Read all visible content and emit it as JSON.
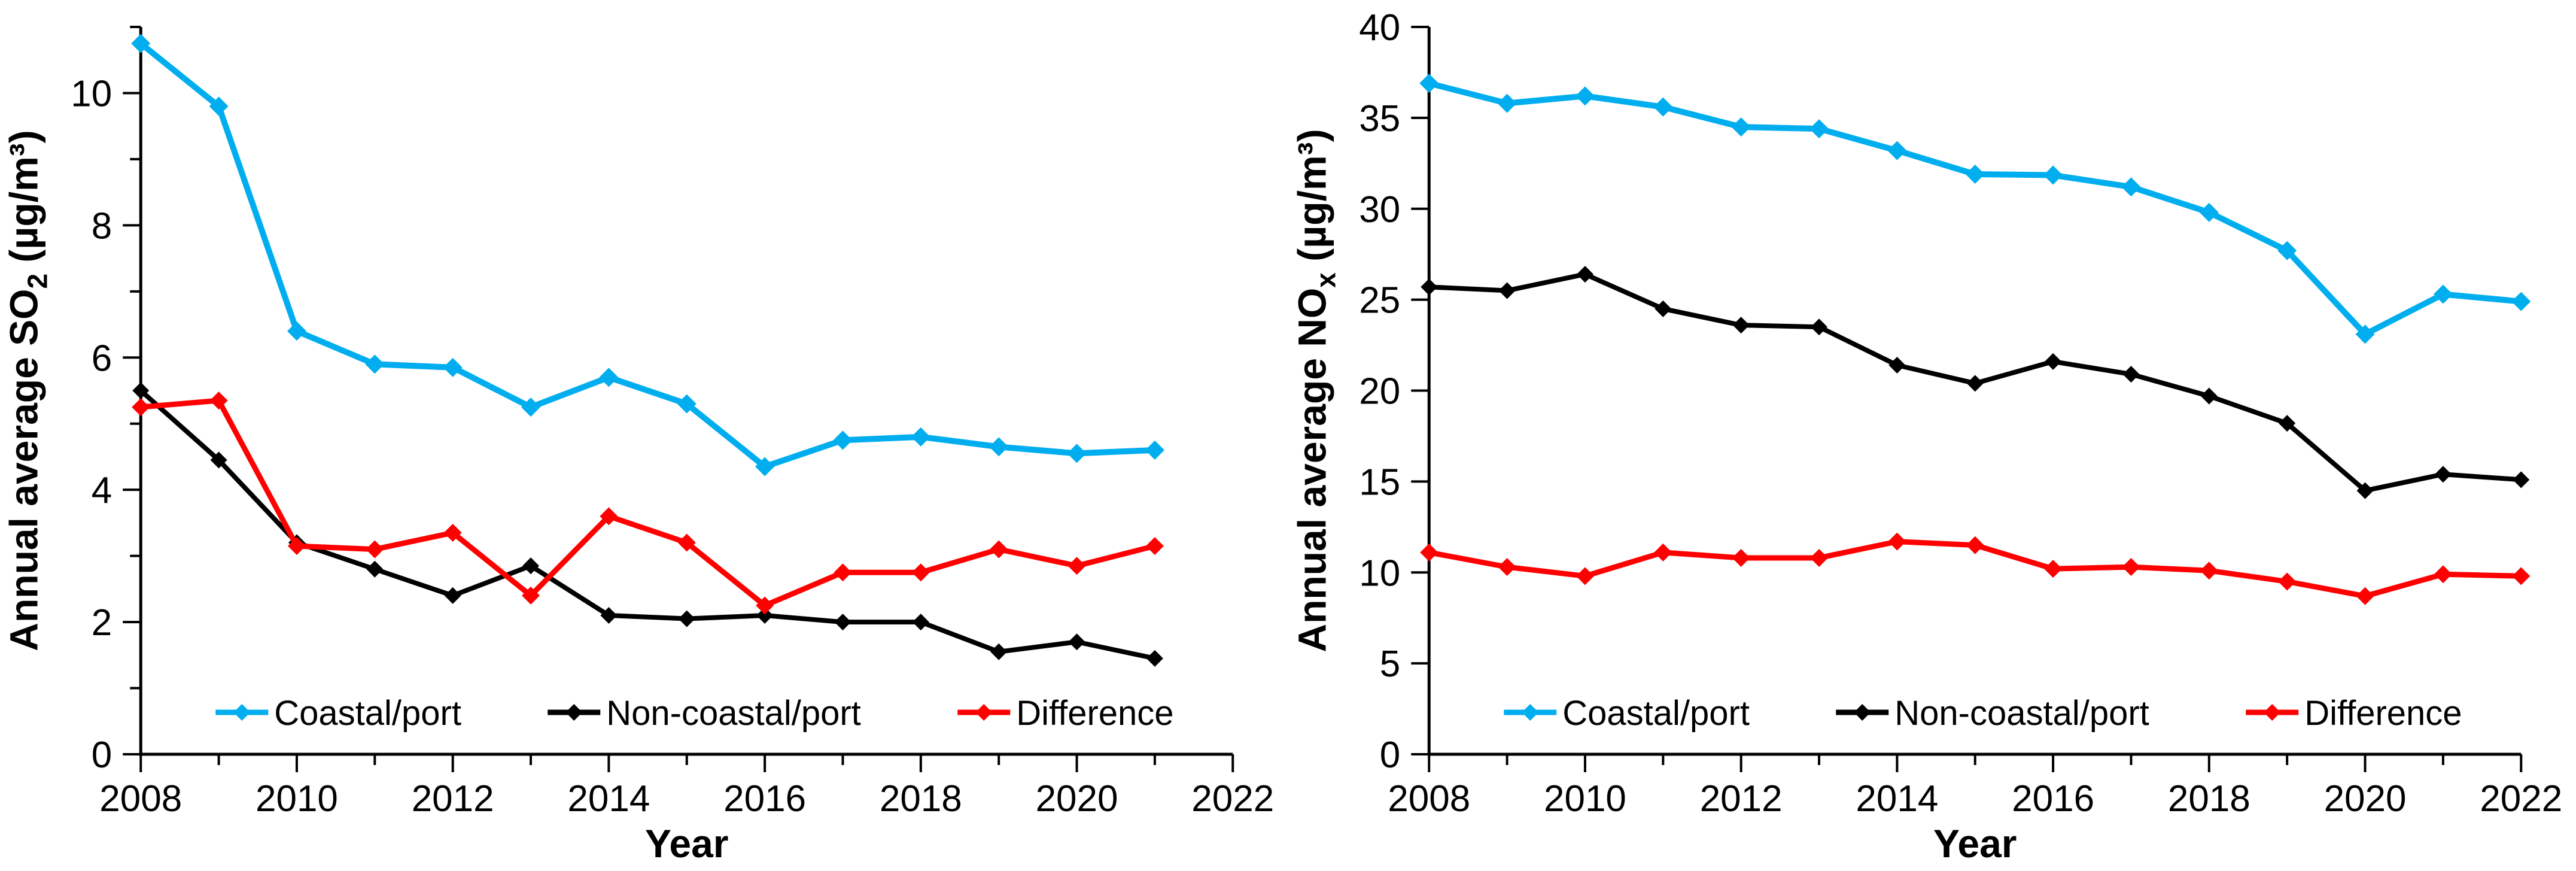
{
  "figure": {
    "background": "#ffffff",
    "axis_color": "#000000",
    "text_color": "#000000"
  },
  "chart_data": [
    {
      "type": "line",
      "id": "so2",
      "title": "",
      "xlabel": "Year",
      "ylabel_plain": "Annual average SO2 (µg/m³)",
      "ylabel_parts": [
        {
          "text": "Annual average SO"
        },
        {
          "text": "2",
          "sub": true
        },
        {
          "text": " (µg/m³)"
        }
      ],
      "x": [
        2008,
        2009,
        2010,
        2011,
        2012,
        2013,
        2014,
        2015,
        2016,
        2017,
        2018,
        2019,
        2020,
        2021
      ],
      "xlim": [
        2008,
        2022
      ],
      "ylim": [
        0,
        11
      ],
      "y_major_ticks": [
        0,
        2,
        4,
        6,
        8,
        10
      ],
      "y_minor_ticks": [
        1,
        3,
        5,
        7,
        9,
        11
      ],
      "x_major_ticks": [
        2008,
        2010,
        2012,
        2014,
        2016,
        2018,
        2020,
        2022
      ],
      "x_minor_ticks": [
        2009,
        2011,
        2013,
        2015,
        2017,
        2019,
        2021
      ],
      "grid": false,
      "legend_position": "bottom-inside",
      "series": [
        {
          "name": "Coastal/port",
          "color": "#00AEEF",
          "stroke_width": 10,
          "values": [
            10.75,
            9.8,
            6.4,
            5.9,
            5.85,
            5.25,
            5.7,
            5.3,
            4.35,
            4.75,
            4.8,
            4.65,
            4.55,
            4.6
          ]
        },
        {
          "name": "Non-coastal/port",
          "color": "#000000",
          "stroke_width": 8,
          "values": [
            5.5,
            4.45,
            3.2,
            2.8,
            2.4,
            2.85,
            2.1,
            2.05,
            2.1,
            2.0,
            2.0,
            1.55,
            1.7,
            1.45
          ]
        },
        {
          "name": "Difference",
          "color": "#FF0000",
          "stroke_width": 9,
          "values": [
            5.25,
            5.35,
            3.15,
            3.1,
            3.35,
            2.4,
            3.6,
            3.2,
            2.25,
            2.75,
            2.75,
            3.1,
            2.85,
            3.15
          ]
        }
      ]
    },
    {
      "type": "line",
      "id": "nox",
      "title": "",
      "xlabel": "Year",
      "ylabel_plain": "Annual average NOx (µg/m³)",
      "ylabel_parts": [
        {
          "text": "Annual average NO"
        },
        {
          "text": "x",
          "sub": true
        },
        {
          "text": " (µg/m³)"
        }
      ],
      "x": [
        2008,
        2009,
        2010,
        2011,
        2012,
        2013,
        2014,
        2015,
        2016,
        2017,
        2018,
        2019,
        2020,
        2021,
        2022
      ],
      "xlim": [
        2008,
        2022
      ],
      "ylim": [
        0,
        40
      ],
      "y_major_ticks": [
        0,
        5,
        10,
        15,
        20,
        25,
        30,
        35,
        40
      ],
      "y_minor_ticks": [],
      "x_major_ticks": [
        2008,
        2010,
        2012,
        2014,
        2016,
        2018,
        2020,
        2022
      ],
      "x_minor_ticks": [
        2009,
        2011,
        2013,
        2015,
        2017,
        2019,
        2021
      ],
      "grid": false,
      "legend_position": "bottom-inside",
      "series": [
        {
          "name": "Coastal/port",
          "color": "#00AEEF",
          "stroke_width": 10,
          "values": [
            36.9,
            35.8,
            36.2,
            35.6,
            34.5,
            34.4,
            33.2,
            31.9,
            31.85,
            31.2,
            29.8,
            27.7,
            23.1,
            25.3,
            24.9
          ]
        },
        {
          "name": "Non-coastal/port",
          "color": "#000000",
          "stroke_width": 8,
          "values": [
            25.7,
            25.5,
            26.4,
            24.5,
            23.6,
            23.5,
            21.4,
            20.4,
            21.6,
            20.9,
            19.7,
            18.2,
            14.5,
            15.4,
            15.1
          ]
        },
        {
          "name": "Difference",
          "color": "#FF0000",
          "stroke_width": 9,
          "values": [
            11.1,
            10.3,
            9.8,
            11.1,
            10.8,
            10.8,
            11.7,
            11.5,
            10.2,
            10.3,
            10.1,
            9.5,
            8.7,
            9.9,
            9.8
          ]
        }
      ]
    }
  ]
}
